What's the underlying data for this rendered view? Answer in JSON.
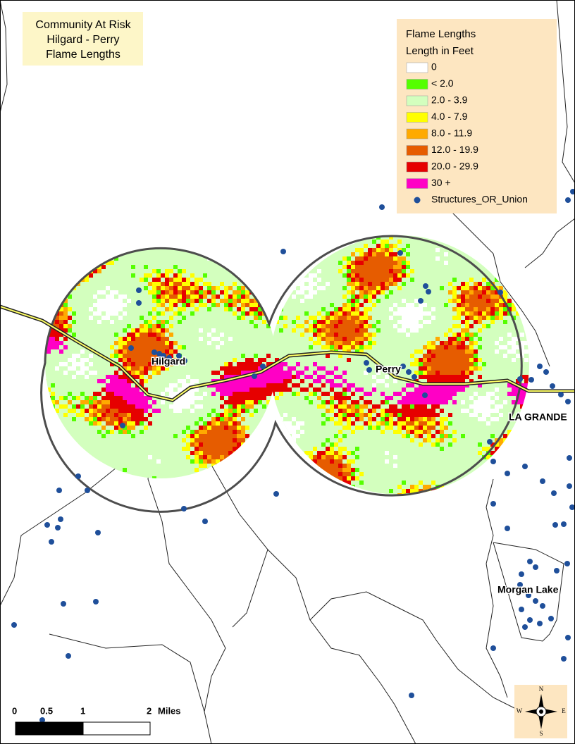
{
  "title": {
    "lines": [
      "Community At Risk",
      "Hilgard - Perry",
      "Flame Lengths"
    ]
  },
  "legend": {
    "title": "Flame Lengths",
    "subtitle": "Length in Feet",
    "items": [
      {
        "label": "0",
        "color": "#ffffff"
      },
      {
        "label": "< 2.0",
        "color": "#55ff00"
      },
      {
        "label": "2.0 - 3.9",
        "color": "#d3ffbe"
      },
      {
        "label": "4.0 - 7.9",
        "color": "#ffff00"
      },
      {
        "label": "8.0 - 11.9",
        "color": "#ffaa00"
      },
      {
        "label": "12.0 - 19.9",
        "color": "#e65c00"
      },
      {
        "label": "20.0 - 29.9",
        "color": "#e60000"
      },
      {
        "label": "30 +",
        "color": "#ff00c5"
      }
    ],
    "points": {
      "label": "Structures_OR_Union",
      "color": "#1f4f9a"
    }
  },
  "places": [
    "Hilgard",
    "Perry",
    "LA GRANDE",
    "Morgan Lake"
  ],
  "scale_bar": {
    "labels": [
      "0",
      "0.5",
      "1",
      "2"
    ],
    "unit": "Miles"
  },
  "compass": [
    "N",
    "E",
    "S",
    "W"
  ]
}
